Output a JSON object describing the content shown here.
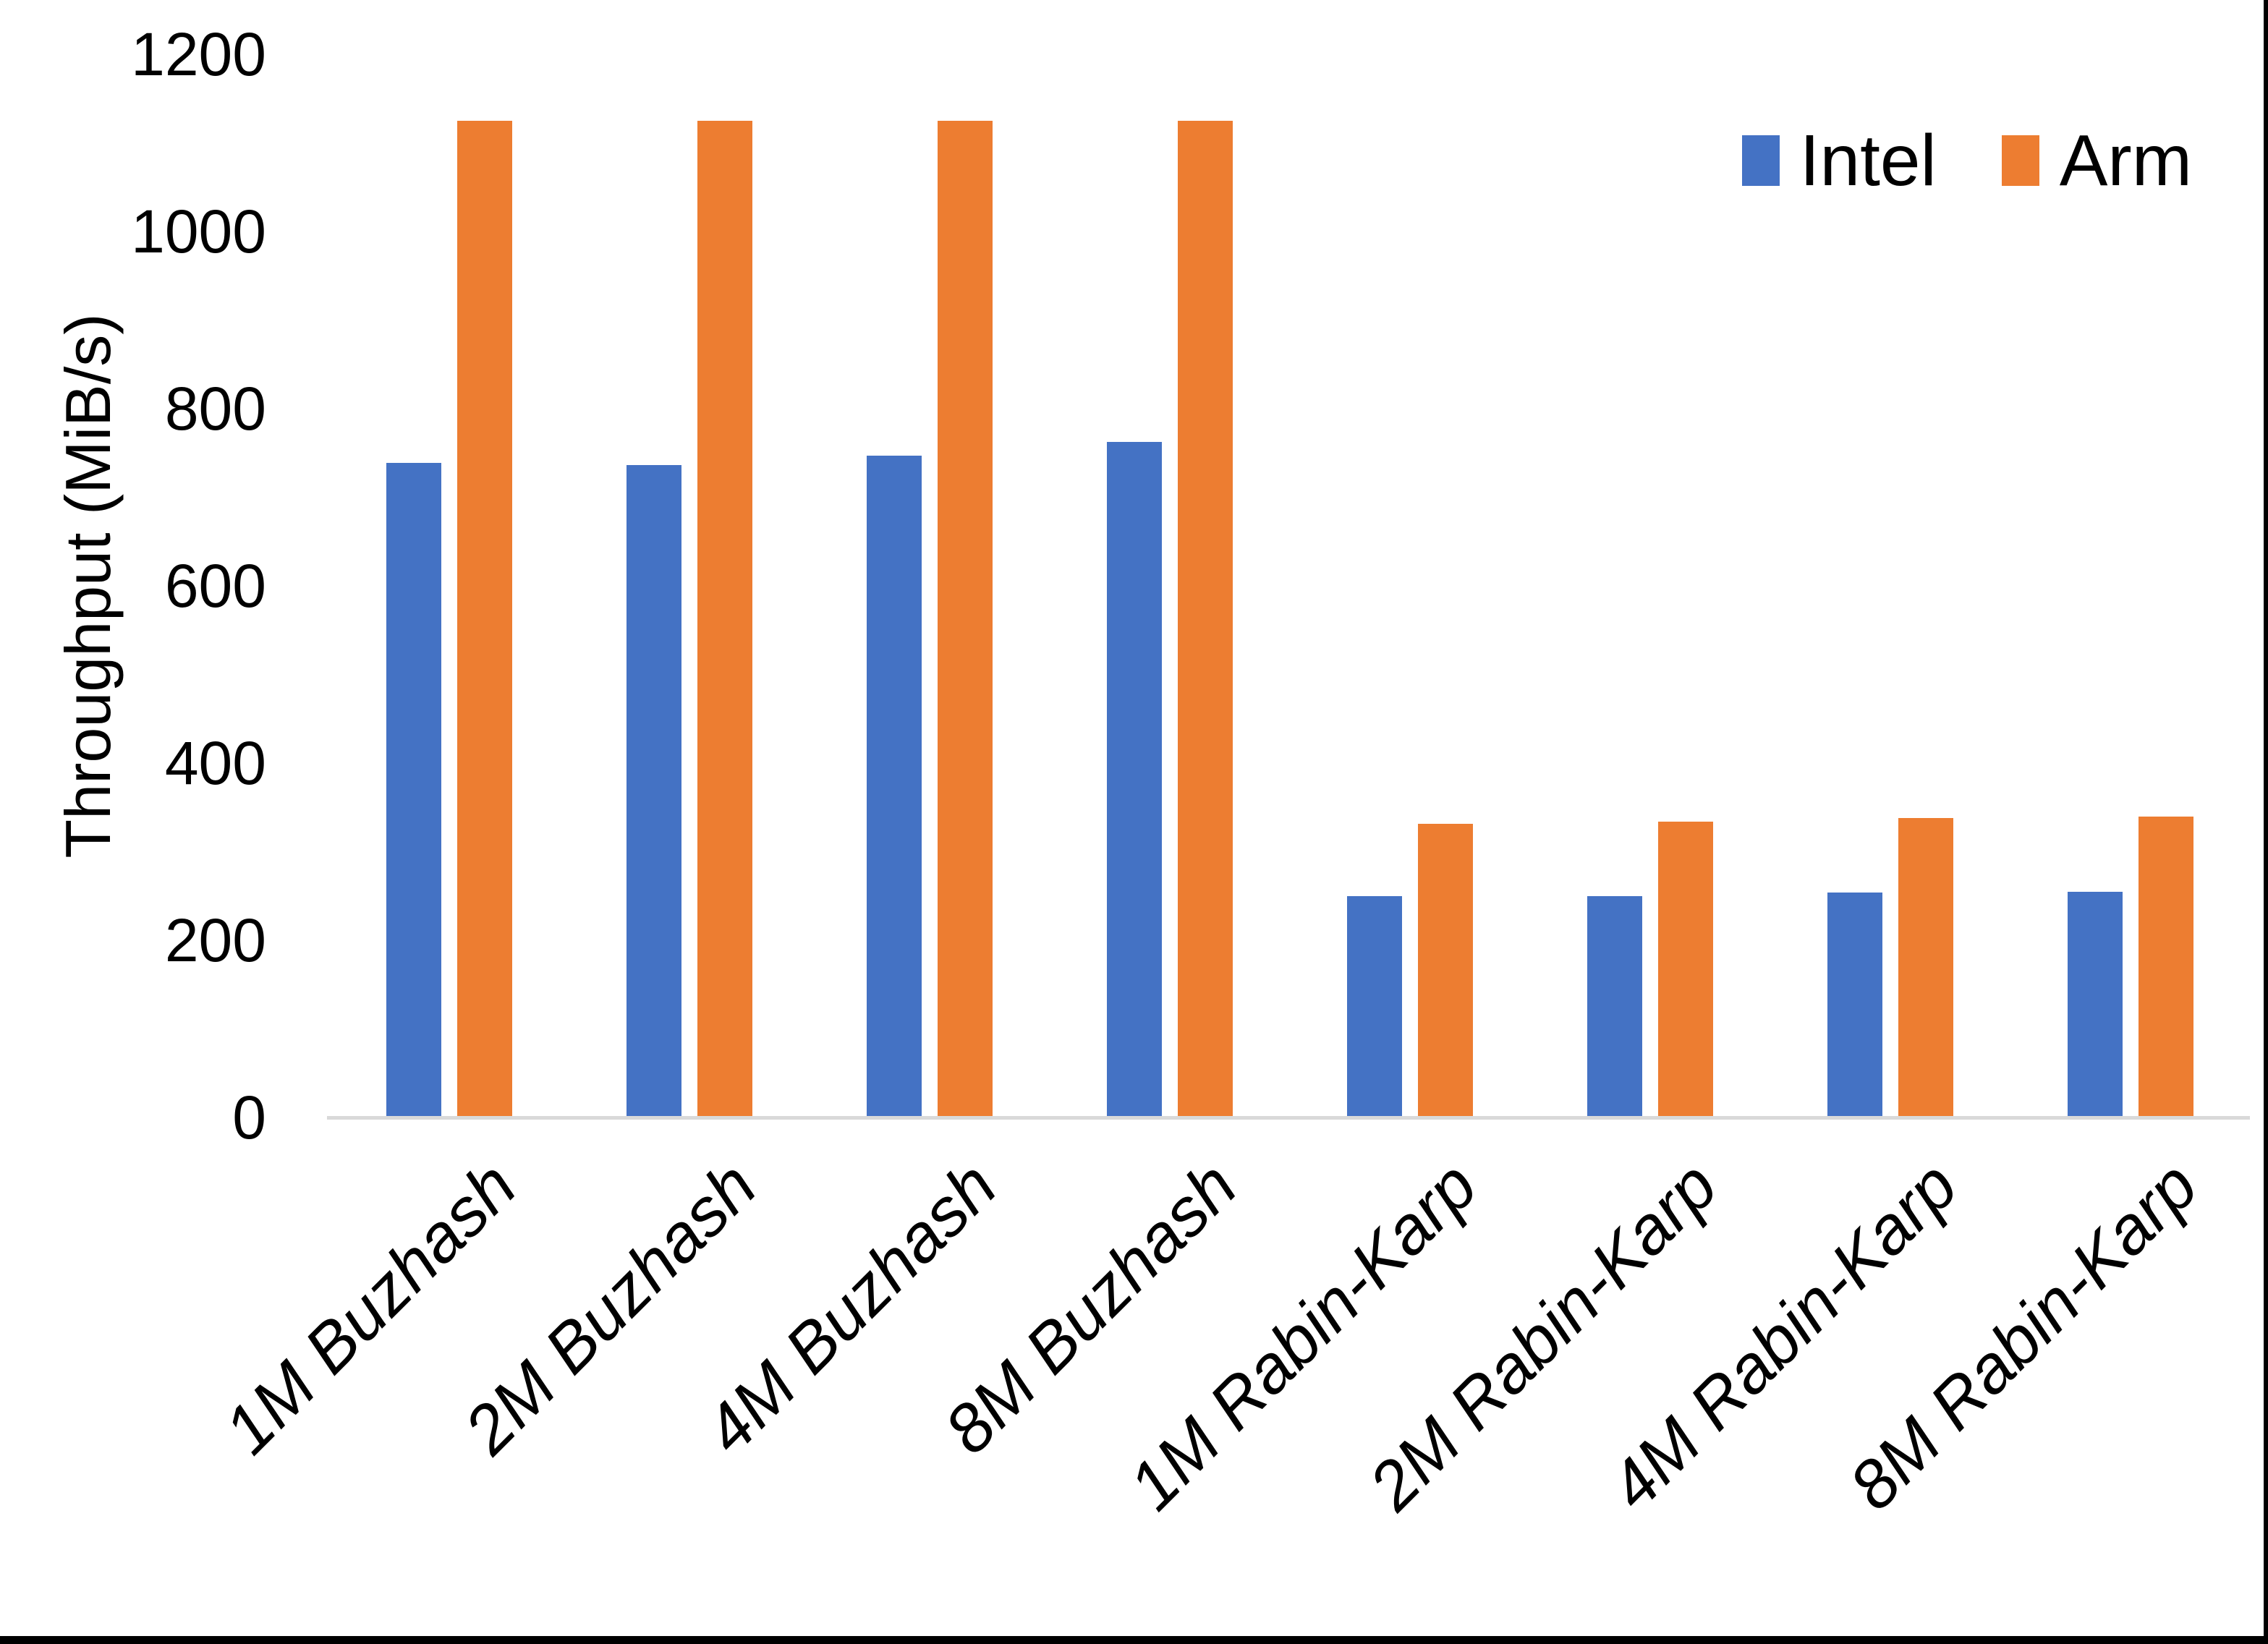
{
  "chart_data": {
    "type": "bar",
    "title": "",
    "xlabel": "",
    "ylabel": "Throughput (MiB/s)",
    "ylim": [
      0,
      1200
    ],
    "yticks": [
      0,
      200,
      400,
      600,
      800,
      1000,
      1200
    ],
    "grid": false,
    "legend_position": "top-right",
    "categories": [
      "1M Buzhash",
      "2M Buzhash",
      "4M Buzhash",
      "8M Buzhash",
      "1M Rabin-Karp",
      "2M Rabin-Karp",
      "4M Rabin-Karp",
      "8M Rabin-Karp"
    ],
    "series": [
      {
        "name": "Intel",
        "color": "#4472C4",
        "values": [
          737,
          735,
          745,
          761,
          248,
          248,
          252,
          253
        ]
      },
      {
        "name": "Arm",
        "color": "#ED7D31",
        "values": [
          1123,
          1123,
          1123,
          1123,
          330,
          332,
          336,
          338
        ]
      }
    ]
  },
  "colors": {
    "intel_blue": "#4472C4",
    "arm_orange": "#ED7D31",
    "axis_line_gray": "#D9D9D9",
    "text_black": "#000000",
    "frame_black": "#000000",
    "background": "#FFFFFF"
  }
}
